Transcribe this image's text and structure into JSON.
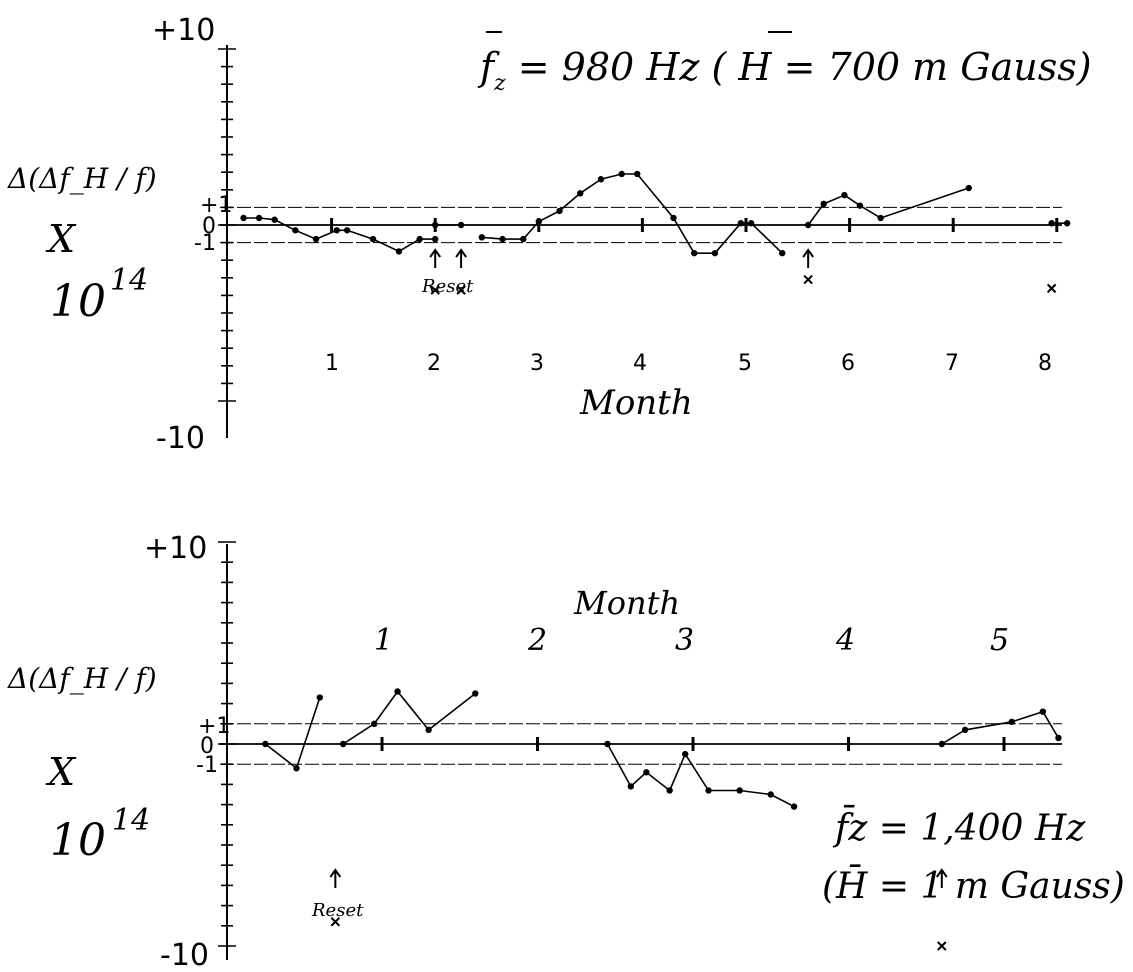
{
  "charts": [
    {
      "id": "top",
      "ylabel": {
        "line1": "Δ(Δf_H / f)",
        "line2": "X",
        "line3": "10",
        "exp": "14"
      },
      "y_tick_labels": {
        "top": "+10",
        "bottom": "-10",
        "plus_one": "+1",
        "zero": "0",
        "minus_one": "-1"
      },
      "xlabel": "Month",
      "month_labels": [
        "1",
        "2",
        "3",
        "4",
        "5",
        "6",
        "7",
        "8"
      ],
      "header": {
        "f": "f",
        "f_sub": "z",
        "eq": " = 980 Hz ( ",
        "h": "H",
        "h_rest": " = 700 m Gauss)"
      },
      "annotations": {
        "reset": "Reset"
      }
    },
    {
      "id": "bottom",
      "ylabel": {
        "line1": "Δ(Δf_H / f)",
        "line2": "X",
        "line3": "10",
        "exp": "14"
      },
      "y_tick_labels": {
        "top": "+10",
        "bottom": "-10",
        "plus_one": "+1",
        "zero": "0",
        "minus_one": "-1"
      },
      "xlabel": "Month",
      "month_labels": [
        "1",
        "2",
        "3",
        "4",
        "5"
      ],
      "header": {
        "line1": "f̄z = 1,400 Hz",
        "line2": "(H̄ = 1 m Gauss)"
      },
      "annotations": {
        "reset": "Reset"
      }
    }
  ],
  "chart_data": [
    {
      "type": "line",
      "ylim": [
        -10,
        10
      ],
      "xlim": [
        0,
        8.3
      ],
      "x_unit": "month",
      "reference_lines": [
        1,
        0,
        -1
      ],
      "segments": [
        [
          [
            0.15,
            0.4
          ],
          [
            0.3,
            0.4
          ],
          [
            0.45,
            0.3
          ],
          [
            0.65,
            -0.3
          ],
          [
            0.85,
            -0.8
          ],
          [
            1.05,
            -0.3
          ],
          [
            1.15,
            -0.3
          ],
          [
            1.4,
            -0.8
          ],
          [
            1.65,
            -1.5
          ],
          [
            1.85,
            -0.8
          ],
          [
            2.0,
            -0.8
          ]
        ],
        [
          [
            2.0,
            0.0
          ],
          [
            2.25,
            0.0
          ]
        ],
        [
          [
            2.45,
            -0.7
          ],
          [
            2.65,
            -0.8
          ],
          [
            2.85,
            -0.8
          ],
          [
            3.0,
            0.2
          ],
          [
            3.2,
            0.8
          ],
          [
            3.4,
            1.8
          ],
          [
            3.6,
            2.6
          ],
          [
            3.8,
            2.9
          ],
          [
            3.95,
            2.9
          ],
          [
            4.3,
            0.4
          ],
          [
            4.5,
            -1.6
          ],
          [
            4.7,
            -1.6
          ],
          [
            4.95,
            0.1
          ],
          [
            5.05,
            0.1
          ],
          [
            5.35,
            -1.6
          ]
        ],
        [
          [
            5.6,
            0.0
          ],
          [
            5.75,
            1.2
          ],
          [
            5.95,
            1.7
          ],
          [
            6.1,
            1.1
          ],
          [
            6.3,
            0.4
          ],
          [
            7.15,
            2.1
          ]
        ],
        [
          [
            7.95,
            0.1
          ],
          [
            8.1,
            0.1
          ]
        ]
      ],
      "reset_arrows_x": [
        2.0,
        2.25,
        5.6
      ],
      "x_marks": [
        [
          2.0,
          -3.7
        ],
        [
          2.25,
          -3.7
        ],
        [
          5.6,
          -3.1
        ],
        [
          7.95,
          -3.6
        ]
      ]
    },
    {
      "type": "line",
      "ylim": [
        -10,
        10
      ],
      "xlim": [
        -0.75,
        5.35
      ],
      "x_unit": "month",
      "reference_lines": [
        1,
        0,
        -1
      ],
      "segments": [
        [
          [
            -0.75,
            0.0
          ],
          [
            -0.55,
            -1.2
          ],
          [
            -0.4,
            2.3
          ]
        ],
        [
          [
            -0.25,
            0.0
          ],
          [
            -0.05,
            1.0
          ],
          [
            0.1,
            2.6
          ],
          [
            0.3,
            0.7
          ],
          [
            0.6,
            2.5
          ]
        ],
        [
          [
            1.45,
            0.0
          ],
          [
            1.6,
            -2.1
          ],
          [
            1.7,
            -1.4
          ],
          [
            1.85,
            -2.3
          ],
          [
            1.95,
            -0.5
          ],
          [
            2.1,
            -2.3
          ],
          [
            2.3,
            -2.3
          ],
          [
            2.5,
            -2.5
          ],
          [
            2.65,
            -3.1
          ]
        ],
        [
          [
            3.6,
            0.0
          ],
          [
            3.75,
            0.7
          ],
          [
            4.05,
            1.1
          ],
          [
            4.25,
            1.6
          ],
          [
            4.35,
            0.3
          ]
        ]
      ],
      "reset_arrows_x": [
        -0.3,
        3.6
      ],
      "x_marks": [
        [
          -0.3,
          -8.8
        ],
        [
          3.6,
          -10.0
        ]
      ]
    }
  ]
}
